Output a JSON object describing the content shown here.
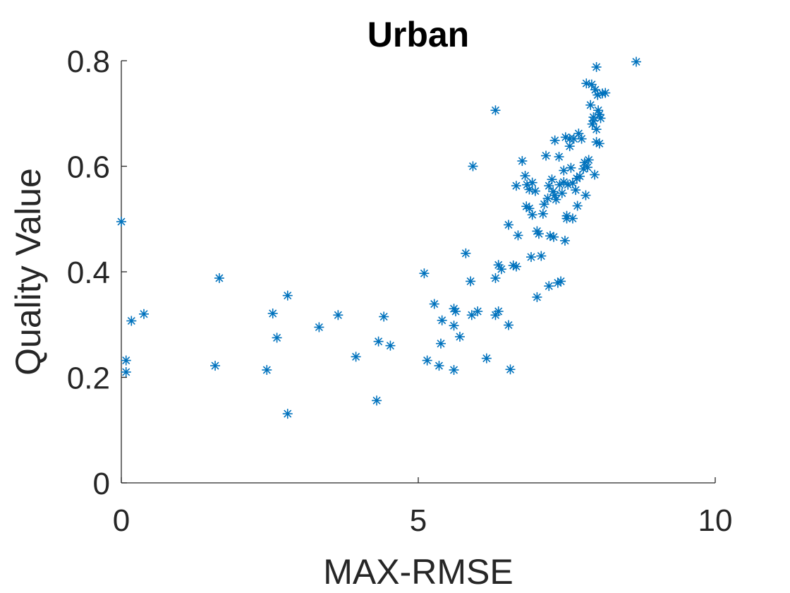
{
  "chart_data": {
    "type": "scatter",
    "title": "Urban",
    "xlabel": "MAX-RMSE",
    "ylabel": "Quality Value",
    "xlim": [
      0,
      10
    ],
    "ylim": [
      0,
      0.8
    ],
    "xticks": [
      0,
      5,
      10
    ],
    "xtick_labels": [
      "0",
      "5",
      "10"
    ],
    "yticks": [
      0,
      0.2,
      0.4,
      0.6,
      0.8
    ],
    "ytick_labels": [
      "0",
      "0.2",
      "0.4",
      "0.6",
      "0.8"
    ],
    "grid": false,
    "legend": "none",
    "marker": "asterisk",
    "color": "#0072BD",
    "points": [
      [
        0.0,
        0.495
      ],
      [
        0.08,
        0.232
      ],
      [
        0.08,
        0.21
      ],
      [
        0.17,
        0.307
      ],
      [
        0.38,
        0.32
      ],
      [
        1.58,
        0.222
      ],
      [
        1.65,
        0.388
      ],
      [
        2.45,
        0.214
      ],
      [
        2.55,
        0.321
      ],
      [
        2.62,
        0.275
      ],
      [
        2.8,
        0.355
      ],
      [
        2.8,
        0.131
      ],
      [
        3.33,
        0.295
      ],
      [
        3.65,
        0.318
      ],
      [
        3.95,
        0.239
      ],
      [
        4.3,
        0.156
      ],
      [
        4.33,
        0.268
      ],
      [
        4.42,
        0.315
      ],
      [
        4.53,
        0.26
      ],
      [
        5.1,
        0.397
      ],
      [
        5.15,
        0.232
      ],
      [
        5.27,
        0.339
      ],
      [
        5.35,
        0.222
      ],
      [
        5.38,
        0.264
      ],
      [
        5.4,
        0.308
      ],
      [
        5.6,
        0.33
      ],
      [
        5.6,
        0.298
      ],
      [
        5.6,
        0.214
      ],
      [
        5.63,
        0.325
      ],
      [
        5.7,
        0.277
      ],
      [
        5.8,
        0.435
      ],
      [
        5.88,
        0.382
      ],
      [
        5.9,
        0.318
      ],
      [
        5.92,
        0.6
      ],
      [
        6.0,
        0.325
      ],
      [
        6.15,
        0.236
      ],
      [
        6.3,
        0.706
      ],
      [
        6.3,
        0.388
      ],
      [
        6.3,
        0.318
      ],
      [
        6.35,
        0.413
      ],
      [
        6.35,
        0.325
      ],
      [
        6.4,
        0.405
      ],
      [
        6.52,
        0.489
      ],
      [
        6.52,
        0.299
      ],
      [
        6.55,
        0.215
      ],
      [
        6.6,
        0.412
      ],
      [
        6.65,
        0.563
      ],
      [
        6.65,
        0.41
      ],
      [
        6.68,
        0.469
      ],
      [
        6.75,
        0.61
      ],
      [
        6.8,
        0.582
      ],
      [
        6.82,
        0.524
      ],
      [
        6.83,
        0.565
      ],
      [
        6.87,
        0.52
      ],
      [
        6.87,
        0.556
      ],
      [
        6.9,
        0.428
      ],
      [
        6.92,
        0.508
      ],
      [
        6.92,
        0.569
      ],
      [
        6.97,
        0.553
      ],
      [
        7.0,
        0.477
      ],
      [
        7.0,
        0.352
      ],
      [
        7.03,
        0.472
      ],
      [
        7.07,
        0.43
      ],
      [
        7.1,
        0.51
      ],
      [
        7.12,
        0.528
      ],
      [
        7.15,
        0.62
      ],
      [
        7.18,
        0.539
      ],
      [
        7.2,
        0.563
      ],
      [
        7.2,
        0.373
      ],
      [
        7.22,
        0.468
      ],
      [
        7.25,
        0.575
      ],
      [
        7.27,
        0.552
      ],
      [
        7.28,
        0.466
      ],
      [
        7.3,
        0.649
      ],
      [
        7.3,
        0.545
      ],
      [
        7.32,
        0.537
      ],
      [
        7.35,
        0.379
      ],
      [
        7.37,
        0.618
      ],
      [
        7.38,
        0.565
      ],
      [
        7.4,
        0.382
      ],
      [
        7.42,
        0.549
      ],
      [
        7.45,
        0.592
      ],
      [
        7.45,
        0.57
      ],
      [
        7.47,
        0.459
      ],
      [
        7.48,
        0.655
      ],
      [
        7.5,
        0.501
      ],
      [
        7.5,
        0.506
      ],
      [
        7.52,
        0.565
      ],
      [
        7.55,
        0.652
      ],
      [
        7.55,
        0.638
      ],
      [
        7.57,
        0.597
      ],
      [
        7.6,
        0.568
      ],
      [
        7.6,
        0.501
      ],
      [
        7.62,
        0.652
      ],
      [
        7.65,
        0.555
      ],
      [
        7.67,
        0.577
      ],
      [
        7.68,
        0.525
      ],
      [
        7.7,
        0.662
      ],
      [
        7.72,
        0.581
      ],
      [
        7.75,
        0.652
      ],
      [
        7.78,
        0.595
      ],
      [
        7.8,
        0.607
      ],
      [
        7.82,
        0.545
      ],
      [
        7.83,
        0.757
      ],
      [
        7.85,
        0.598
      ],
      [
        7.87,
        0.612
      ],
      [
        7.9,
        0.716
      ],
      [
        7.92,
        0.755
      ],
      [
        7.93,
        0.68
      ],
      [
        7.95,
        0.693
      ],
      [
        7.95,
        0.686
      ],
      [
        7.97,
        0.584
      ],
      [
        7.98,
        0.745
      ],
      [
        8.0,
        0.788
      ],
      [
        8.0,
        0.67
      ],
      [
        8.0,
        0.646
      ],
      [
        8.02,
        0.735
      ],
      [
        8.03,
        0.706
      ],
      [
        8.05,
        0.698
      ],
      [
        8.05,
        0.643
      ],
      [
        8.07,
        0.691
      ],
      [
        8.1,
        0.738
      ],
      [
        8.15,
        0.739
      ],
      [
        8.67,
        0.798
      ]
    ]
  }
}
